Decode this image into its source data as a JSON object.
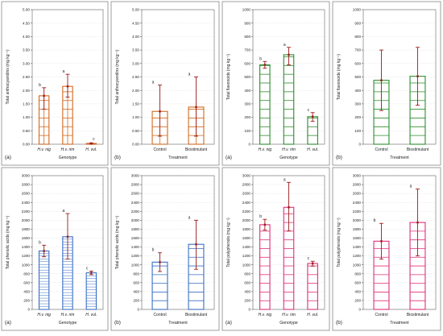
{
  "figure": {
    "colors": {
      "anthocyanidins": "#d2691e",
      "flavonoids": "#2e8b2e",
      "phenolics": "#3a6fc4",
      "polyphenols": "#e0307a",
      "error_bar": "#9b1c1c",
      "frame": "#888888"
    }
  },
  "chart_data": [
    {
      "type": "bar",
      "panel_label": "(a)",
      "ylabel": "Total anthocyanidins (mg kg⁻¹)",
      "xlabel": "Genotype",
      "categories": [
        "H.v. nig",
        "H.v. rim",
        "H. vul."
      ],
      "values": [
        1.8,
        2.15,
        0.03
      ],
      "error_upper": [
        2.1,
        2.6,
        0.05
      ],
      "error_lower": [
        1.3,
        1.75,
        0.0
      ],
      "letters": [
        "b",
        "a",
        "c"
      ],
      "ylim": [
        0,
        5
      ],
      "yticks": [
        "0.00",
        "0.50",
        "1.00",
        "1.50",
        "2.00",
        "2.50",
        "3.00",
        "3.50",
        "4.00",
        "4.50",
        "5.00"
      ],
      "color": "anthocyanidins",
      "hatch": "grid"
    },
    {
      "type": "bar",
      "panel_label": "(b)",
      "ylabel": "Total anthocyanidins (mg kg⁻¹)",
      "xlabel": "Treatment",
      "categories": [
        "Control",
        "Biostimulant"
      ],
      "values": [
        1.22,
        1.38
      ],
      "error_upper": [
        2.2,
        2.5
      ],
      "error_lower": [
        0.3,
        0.3
      ],
      "letters": [
        "a",
        "a"
      ],
      "ylim": [
        0,
        5
      ],
      "yticks": [
        "0.00",
        "0.50",
        "1.00",
        "1.50",
        "2.00",
        "2.50",
        "3.00",
        "3.50",
        "4.00",
        "4.50",
        "5.00"
      ],
      "color": "anthocyanidins",
      "hatch": "grid"
    },
    {
      "type": "bar",
      "panel_label": "(a)",
      "ylabel": "Total flavonoids (mg kg⁻¹)",
      "xlabel": "Genotype",
      "categories": [
        "H.v. nig",
        "H.v. rim",
        "H. vul."
      ],
      "values": [
        590,
        665,
        205
      ],
      "error_upper": [
        615,
        720,
        235
      ],
      "error_lower": [
        565,
        590,
        170
      ],
      "letters": [
        "b",
        "a",
        "c"
      ],
      "ylim": [
        0,
        1000
      ],
      "yticks": [
        "0",
        "100",
        "200",
        "300",
        "400",
        "500",
        "600",
        "700",
        "800",
        "900",
        "1000"
      ],
      "color": "flavonoids",
      "hatch": "horizontal"
    },
    {
      "type": "bar",
      "panel_label": "(b)",
      "ylabel": "Total flavonoids (mg kg⁻¹)",
      "xlabel": "Treatment",
      "categories": [
        "Control",
        "Biostimulant"
      ],
      "values": [
        475,
        505
      ],
      "error_upper": [
        700,
        720
      ],
      "error_lower": [
        250,
        290
      ],
      "letters": [
        "",
        ""
      ],
      "ylim": [
        0,
        1000
      ],
      "yticks": [
        "0",
        "100",
        "200",
        "300",
        "400",
        "500",
        "600",
        "700",
        "800",
        "900",
        "1000"
      ],
      "color": "flavonoids",
      "hatch": "horizontal"
    },
    {
      "type": "bar",
      "panel_label": "(a)",
      "ylabel": "Total phenolic acids (mg kg⁻¹)",
      "xlabel": "Genotype",
      "categories": [
        "H.v. nig",
        "H.v. rim",
        "H. vul."
      ],
      "values": [
        1310,
        1630,
        820
      ],
      "error_upper": [
        1440,
        2150,
        860
      ],
      "error_lower": [
        1180,
        1130,
        780
      ],
      "letters": [
        "b",
        "a",
        "c"
      ],
      "ylim": [
        0,
        3000
      ],
      "yticks": [
        "0",
        "200",
        "400",
        "600",
        "800",
        "1000",
        "1200",
        "1400",
        "1600",
        "1800",
        "2000",
        "2200",
        "2400",
        "2600",
        "2800",
        "3000"
      ],
      "color": "phenolics",
      "hatch": "dense"
    },
    {
      "type": "bar",
      "panel_label": "(b)",
      "ylabel": "Total phenolic acids (mg kg⁻¹)",
      "xlabel": "Treatment",
      "categories": [
        "Control",
        "Biostimulant"
      ],
      "values": [
        1060,
        1460
      ],
      "error_upper": [
        1270,
        2000
      ],
      "error_lower": [
        850,
        900
      ],
      "letters": [
        "b",
        "a"
      ],
      "ylim": [
        0,
        3000
      ],
      "yticks": [
        "0",
        "200",
        "400",
        "600",
        "800",
        "1000",
        "1200",
        "1400",
        "1600",
        "1800",
        "2000",
        "2200",
        "2400",
        "2600",
        "2800",
        "3000"
      ],
      "color": "phenolics",
      "hatch": "sparse"
    },
    {
      "type": "bar",
      "panel_label": "(a)",
      "ylabel": "Total polyphenols (mg kg⁻¹)",
      "xlabel": "Genotype",
      "categories": [
        "H.v. nig",
        "H.v. rim",
        "H. vul."
      ],
      "values": [
        1900,
        2290,
        1030
      ],
      "error_upper": [
        2020,
        2850,
        1080
      ],
      "error_lower": [
        1780,
        1760,
        970
      ],
      "letters": [
        "b",
        "a",
        "c"
      ],
      "ylim": [
        0,
        3000
      ],
      "yticks": [
        "0",
        "200",
        "400",
        "600",
        "800",
        "1000",
        "1200",
        "1400",
        "1600",
        "1800",
        "2000",
        "2200",
        "2400",
        "2600",
        "2800",
        "3000"
      ],
      "color": "polyphenols",
      "hatch": "horizontal"
    },
    {
      "type": "bar",
      "panel_label": "(b)",
      "ylabel": "Total polyphenols (mg kg⁻¹)",
      "xlabel": "Treatment",
      "categories": [
        "Control",
        "Biostimulant"
      ],
      "values": [
        1530,
        1950
      ],
      "error_upper": [
        1930,
        2700
      ],
      "error_lower": [
        1130,
        1200
      ],
      "letters": [
        "b",
        "a"
      ],
      "ylim": [
        0,
        3000
      ],
      "yticks": [
        "0",
        "200",
        "400",
        "600",
        "800",
        "1000",
        "1200",
        "1400",
        "1600",
        "1800",
        "2000",
        "2200",
        "2400",
        "2600",
        "2800",
        "3000"
      ],
      "color": "polyphenols",
      "hatch": "horizontal"
    }
  ]
}
